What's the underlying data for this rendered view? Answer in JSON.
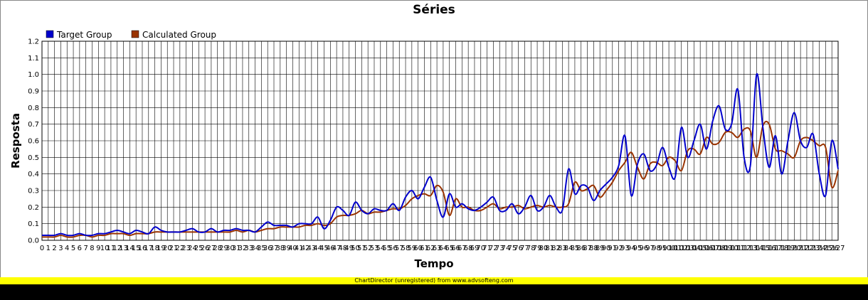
{
  "chart_data": {
    "type": "line",
    "title": "Séries",
    "xlabel": "Tempo",
    "ylabel": "Resposta",
    "ylim": [
      0,
      1.2
    ],
    "yticks": [
      "0.0",
      "0.1",
      "0.2",
      "0.3",
      "0.4",
      "0.5",
      "0.6",
      "0.7",
      "0.8",
      "0.9",
      "1.0",
      "1.1",
      "1.2"
    ],
    "grid": true,
    "legend_position": "top-left",
    "x_count": 128,
    "series": [
      {
        "name": "Target Group",
        "color": "#0000cc",
        "values": [
          0.03,
          0.03,
          0.03,
          0.04,
          0.03,
          0.03,
          0.04,
          0.03,
          0.03,
          0.04,
          0.04,
          0.05,
          0.06,
          0.05,
          0.04,
          0.06,
          0.05,
          0.04,
          0.08,
          0.06,
          0.05,
          0.05,
          0.05,
          0.06,
          0.07,
          0.05,
          0.05,
          0.07,
          0.05,
          0.06,
          0.06,
          0.07,
          0.06,
          0.06,
          0.05,
          0.08,
          0.11,
          0.09,
          0.09,
          0.09,
          0.08,
          0.1,
          0.1,
          0.1,
          0.14,
          0.07,
          0.12,
          0.2,
          0.18,
          0.15,
          0.23,
          0.18,
          0.16,
          0.19,
          0.18,
          0.18,
          0.22,
          0.18,
          0.26,
          0.3,
          0.25,
          0.32,
          0.38,
          0.24,
          0.14,
          0.28,
          0.2,
          0.22,
          0.19,
          0.18,
          0.2,
          0.23,
          0.26,
          0.18,
          0.18,
          0.22,
          0.16,
          0.2,
          0.27,
          0.18,
          0.2,
          0.27,
          0.2,
          0.18,
          0.43,
          0.28,
          0.33,
          0.32,
          0.24,
          0.3,
          0.34,
          0.38,
          0.45,
          0.63,
          0.27,
          0.46,
          0.52,
          0.42,
          0.45,
          0.56,
          0.44,
          0.38,
          0.68,
          0.5,
          0.6,
          0.7,
          0.55,
          0.72,
          0.81,
          0.67,
          0.7,
          0.91,
          0.5,
          0.45,
          1.0,
          0.68,
          0.44,
          0.63,
          0.4,
          0.6,
          0.77,
          0.6,
          0.56,
          0.64,
          0.4,
          0.27,
          0.6,
          0.43
        ]
      },
      {
        "name": "Calculated Group",
        "color": "#993300",
        "values": [
          0.02,
          0.02,
          0.02,
          0.03,
          0.02,
          0.02,
          0.03,
          0.03,
          0.02,
          0.03,
          0.03,
          0.04,
          0.04,
          0.04,
          0.03,
          0.04,
          0.04,
          0.04,
          0.05,
          0.05,
          0.05,
          0.05,
          0.05,
          0.05,
          0.05,
          0.05,
          0.05,
          0.05,
          0.05,
          0.05,
          0.05,
          0.06,
          0.05,
          0.06,
          0.05,
          0.06,
          0.07,
          0.07,
          0.08,
          0.08,
          0.08,
          0.08,
          0.09,
          0.09,
          0.1,
          0.09,
          0.1,
          0.14,
          0.15,
          0.15,
          0.16,
          0.18,
          0.16,
          0.17,
          0.17,
          0.18,
          0.19,
          0.19,
          0.21,
          0.25,
          0.27,
          0.28,
          0.27,
          0.33,
          0.29,
          0.15,
          0.25,
          0.2,
          0.2,
          0.18,
          0.18,
          0.2,
          0.22,
          0.19,
          0.2,
          0.2,
          0.21,
          0.19,
          0.2,
          0.21,
          0.2,
          0.21,
          0.2,
          0.2,
          0.22,
          0.35,
          0.3,
          0.31,
          0.33,
          0.26,
          0.3,
          0.35,
          0.42,
          0.47,
          0.53,
          0.44,
          0.37,
          0.46,
          0.47,
          0.45,
          0.5,
          0.48,
          0.42,
          0.54,
          0.55,
          0.52,
          0.62,
          0.58,
          0.59,
          0.65,
          0.65,
          0.62,
          0.67,
          0.66,
          0.5,
          0.69,
          0.7,
          0.55,
          0.54,
          0.52,
          0.5,
          0.6,
          0.62,
          0.6,
          0.57,
          0.56,
          0.32,
          0.42
        ]
      }
    ]
  },
  "footer": {
    "credit": "ChartDirector (unregistered) from www.advsofteng.com"
  },
  "colors": {
    "footer_bar": "#ffff00",
    "bottom_bar": "#000000",
    "grid": "#000000"
  }
}
